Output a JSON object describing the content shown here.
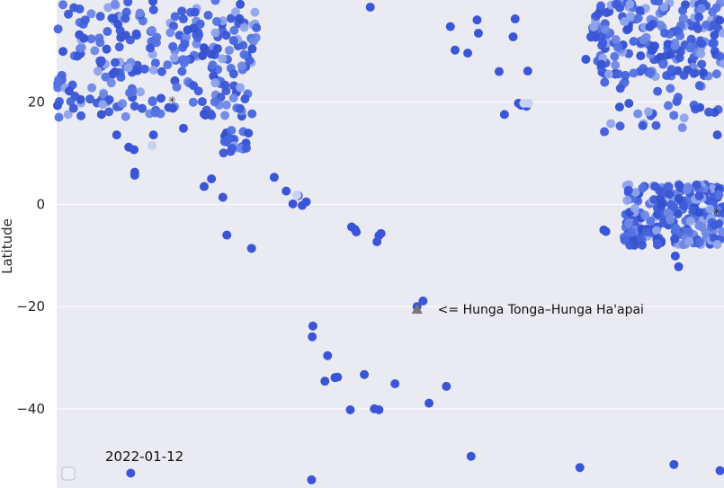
{
  "chart_data": {
    "type": "scatter",
    "title": "",
    "xlabel": "",
    "ylabel": "Latitude",
    "ylim": [
      -55.5,
      40
    ],
    "xlim": [
      0,
      100
    ],
    "y_ticks": [
      20,
      0,
      -20,
      -40
    ],
    "grid": true,
    "background_color": "#eaeaf2",
    "grid_color": "#ffffff",
    "point_color": "#3a56d6",
    "point_light_color": "#c7d2f3",
    "marker_color": "#777777",
    "date_label": "2022-01-12",
    "annotation": {
      "text": "<= Hunga Tonga–Hunga Ha'apai",
      "marker": "triangle",
      "x": 54,
      "y": -20.5
    },
    "legend": {
      "placement": "bottom-left",
      "swatch": true
    },
    "clusters": [
      {
        "name": "top-left",
        "x": [
          0,
          30
        ],
        "y": [
          17,
          40
        ],
        "n": 260
      },
      {
        "name": "hawaii",
        "x": [
          25,
          29
        ],
        "y": [
          10,
          15
        ],
        "n": 22
      },
      {
        "name": "top-right-a",
        "x": [
          80,
          100
        ],
        "y": [
          25,
          40
        ],
        "n": 200
      },
      {
        "name": "top-right-b",
        "x": [
          82,
          100
        ],
        "y": [
          14,
          27
        ],
        "n": 40
      },
      {
        "name": "right-dense",
        "x": [
          85,
          100
        ],
        "y": [
          -8,
          4
        ],
        "n": 230
      }
    ],
    "points": [
      {
        "x": 3.4,
        "y": 33.2
      },
      {
        "x": 8.7,
        "y": 25.9
      },
      {
        "x": 9.0,
        "y": 13.6
      },
      {
        "x": 11.7,
        "y": 5.7
      },
      {
        "x": 11.7,
        "y": 6.3
      },
      {
        "x": 10.8,
        "y": 11.2
      },
      {
        "x": 11.6,
        "y": 10.7
      },
      {
        "x": 14.5,
        "y": 13.6
      },
      {
        "x": 17.4,
        "y": 18.8
      },
      {
        "x": 19.0,
        "y": 14.9
      },
      {
        "x": 22.1,
        "y": 17.7
      },
      {
        "x": 22.1,
        "y": 3.5
      },
      {
        "x": 23.2,
        "y": 5.0
      },
      {
        "x": 24.9,
        "y": 1.4
      },
      {
        "x": 25.5,
        "y": -6.0
      },
      {
        "x": 29.2,
        "y": -8.6
      },
      {
        "x": 32.6,
        "y": 5.3
      },
      {
        "x": 34.4,
        "y": 2.6
      },
      {
        "x": 35.4,
        "y": 0.1
      },
      {
        "x": 36.8,
        "y": -0.2
      },
      {
        "x": 36.2,
        "y": 1.7
      },
      {
        "x": 37.4,
        "y": 0.5
      },
      {
        "x": 44.2,
        "y": -4.4
      },
      {
        "x": 44.7,
        "y": -4.9
      },
      {
        "x": 44.9,
        "y": -5.4
      },
      {
        "x": 48.0,
        "y": -7.3
      },
      {
        "x": 48.3,
        "y": -6.1
      },
      {
        "x": 48.6,
        "y": -5.7
      },
      {
        "x": 54.0,
        "y": -20.0
      },
      {
        "x": 54.9,
        "y": -18.9
      },
      {
        "x": 38.4,
        "y": -23.8
      },
      {
        "x": 38.3,
        "y": -25.9
      },
      {
        "x": 40.2,
        "y": -34.6
      },
      {
        "x": 40.6,
        "y": -29.6
      },
      {
        "x": 41.7,
        "y": -33.9
      },
      {
        "x": 42.1,
        "y": -33.8
      },
      {
        "x": 46.1,
        "y": -33.3
      },
      {
        "x": 44.0,
        "y": -40.2
      },
      {
        "x": 47.6,
        "y": -40.0
      },
      {
        "x": 48.3,
        "y": -40.2
      },
      {
        "x": 50.7,
        "y": -35.1
      },
      {
        "x": 55.8,
        "y": -38.9
      },
      {
        "x": 58.4,
        "y": -35.6
      },
      {
        "x": 62.1,
        "y": -49.3
      },
      {
        "x": 11.1,
        "y": -52.6
      },
      {
        "x": 38.2,
        "y": -53.9
      },
      {
        "x": 78.4,
        "y": -51.5
      },
      {
        "x": 92.5,
        "y": -50.9
      },
      {
        "x": 99.4,
        "y": -52.1
      },
      {
        "x": 59.7,
        "y": 30.2
      },
      {
        "x": 61.6,
        "y": 29.6
      },
      {
        "x": 63.2,
        "y": 33.5
      },
      {
        "x": 66.3,
        "y": 26.0
      },
      {
        "x": 67.1,
        "y": 17.6
      },
      {
        "x": 68.4,
        "y": 32.8
      },
      {
        "x": 69.2,
        "y": 19.8
      },
      {
        "x": 69.6,
        "y": 19.4
      },
      {
        "x": 70.4,
        "y": 19.2
      },
      {
        "x": 70.6,
        "y": 26.1
      },
      {
        "x": 79.3,
        "y": 28.4
      },
      {
        "x": 80.8,
        "y": 32.7
      },
      {
        "x": 81.6,
        "y": 27.4
      },
      {
        "x": 82.0,
        "y": -5.0
      },
      {
        "x": 82.3,
        "y": -5.3
      },
      {
        "x": 92.7,
        "y": -10.1
      },
      {
        "x": 93.2,
        "y": -12.2
      },
      {
        "x": 93.3,
        "y": 3.7
      },
      {
        "x": 99.0,
        "y": 13.6
      },
      {
        "x": 47.0,
        "y": 38.6
      },
      {
        "x": 59.0,
        "y": 34.8
      },
      {
        "x": 63.0,
        "y": 36.1
      },
      {
        "x": 68.7,
        "y": 36.3
      },
      {
        "x": 70.0,
        "y": 19.8,
        "light": true
      },
      {
        "x": 70.7,
        "y": 19.8,
        "light": true
      },
      {
        "x": 14.3,
        "y": 11.5,
        "light": true
      },
      {
        "x": 36.0,
        "y": 1.8,
        "light": true
      }
    ],
    "star_markers": [
      {
        "x": 17.3,
        "y": 20.5
      },
      {
        "x": 98.9,
        "y": -1.3
      }
    ]
  }
}
